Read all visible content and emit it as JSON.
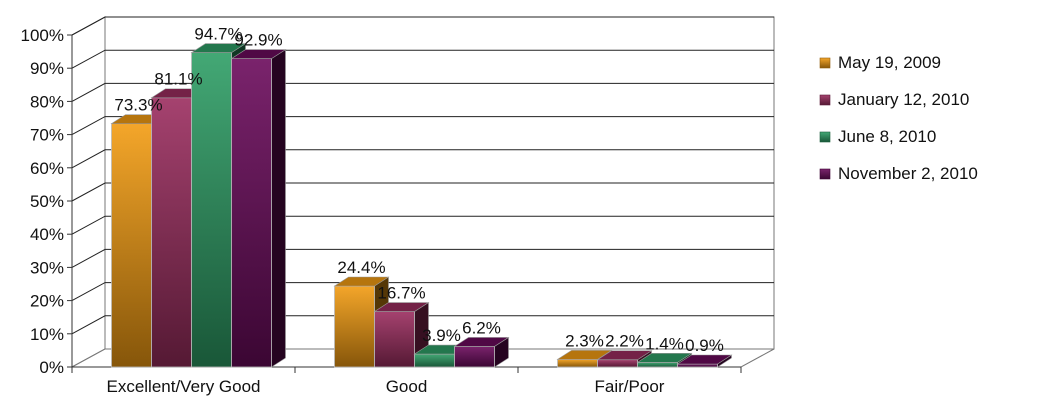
{
  "chart_data": {
    "type": "bar",
    "title": "",
    "xlabel": "",
    "ylabel": "",
    "ylim": [
      0,
      100
    ],
    "y_ticks": [
      "0%",
      "10%",
      "20%",
      "30%",
      "40%",
      "50%",
      "60%",
      "70%",
      "80%",
      "90%",
      "100%"
    ],
    "categories": [
      "Excellent/Very Good",
      "Good",
      "Fair/Poor"
    ],
    "series": [
      {
        "name": "May 19, 2009",
        "color": "#F39C12",
        "values": [
          73.3,
          24.4,
          2.3
        ],
        "labels": [
          "73.3%",
          "24.4%",
          "2.3%"
        ]
      },
      {
        "name": "January 12, 2010",
        "color": "#9B2D5F",
        "values": [
          81.1,
          16.7,
          2.2
        ],
        "labels": [
          "81.1%",
          "16.7%",
          "2.2%"
        ]
      },
      {
        "name": "June 8, 2010",
        "color": "#2E9E66",
        "values": [
          94.7,
          3.9,
          1.4
        ],
        "labels": [
          "94.7%",
          "3.9%",
          "1.4%"
        ]
      },
      {
        "name": "November 2, 2010",
        "color": "#6B0A5C",
        "values": [
          92.9,
          6.2,
          0.9
        ],
        "labels": [
          "92.9%",
          "6.2%",
          "0.9%"
        ]
      }
    ],
    "grid": true,
    "legend_position": "right",
    "style": "3d-clustered-column"
  }
}
